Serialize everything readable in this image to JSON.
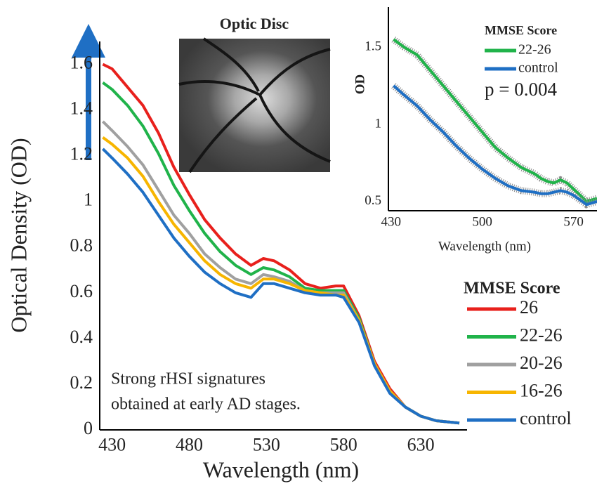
{
  "image": {
    "title": "Optic Disc"
  },
  "chart_data": [
    {
      "type": "line",
      "x": [
        424,
        430,
        440,
        450,
        460,
        470,
        480,
        490,
        500,
        510,
        520,
        528,
        535,
        545,
        555,
        565,
        575,
        580,
        590,
        600,
        610,
        620,
        630,
        640,
        655
      ],
      "series": [
        {
          "name": "26",
          "color": "#e8201c",
          "values": [
            1.6,
            1.58,
            1.5,
            1.42,
            1.3,
            1.15,
            1.03,
            0.92,
            0.84,
            0.77,
            0.72,
            0.75,
            0.74,
            0.7,
            0.64,
            0.62,
            0.63,
            0.63,
            0.5,
            0.3,
            0.18,
            0.1,
            0.06,
            0.04,
            0.03
          ]
        },
        {
          "name": "22-26",
          "color": "#20b34a",
          "values": [
            1.52,
            1.49,
            1.42,
            1.33,
            1.21,
            1.07,
            0.96,
            0.86,
            0.78,
            0.72,
            0.68,
            0.71,
            0.7,
            0.67,
            0.62,
            0.61,
            0.61,
            0.61,
            0.49,
            0.29,
            0.17,
            0.1,
            0.06,
            0.04,
            0.03
          ]
        },
        {
          "name": "20-26",
          "color": "#a0a0a0",
          "values": [
            1.35,
            1.31,
            1.24,
            1.16,
            1.05,
            0.94,
            0.86,
            0.77,
            0.71,
            0.66,
            0.64,
            0.68,
            0.67,
            0.65,
            0.61,
            0.6,
            0.6,
            0.6,
            0.48,
            0.29,
            0.17,
            0.1,
            0.06,
            0.04,
            0.03
          ]
        },
        {
          "name": "16-26",
          "color": "#f7b500",
          "values": [
            1.28,
            1.25,
            1.19,
            1.11,
            1.0,
            0.9,
            0.82,
            0.74,
            0.68,
            0.64,
            0.62,
            0.66,
            0.66,
            0.64,
            0.61,
            0.6,
            0.59,
            0.59,
            0.48,
            0.29,
            0.17,
            0.1,
            0.06,
            0.04,
            0.03
          ]
        },
        {
          "name": "control",
          "color": "#1f6fc4",
          "values": [
            1.23,
            1.19,
            1.12,
            1.04,
            0.94,
            0.84,
            0.76,
            0.69,
            0.64,
            0.6,
            0.58,
            0.64,
            0.64,
            0.62,
            0.6,
            0.59,
            0.59,
            0.58,
            0.47,
            0.28,
            0.16,
            0.1,
            0.06,
            0.04,
            0.03
          ]
        }
      ],
      "xlim": [
        422,
        660
      ],
      "ylim": [
        0,
        1.7
      ],
      "xticks": [
        430,
        480,
        530,
        580,
        630
      ],
      "yticks": [
        0,
        0.2,
        0.4,
        0.6,
        0.8,
        1,
        1.2,
        1.4,
        1.6
      ],
      "xlabel": "Wavelength (nm)",
      "ylabel": "Optical Density (OD)",
      "legend_title": "MMSE Score",
      "annotation": [
        "Strong rHSI signatures",
        "obtained at early AD stages."
      ]
    },
    {
      "type": "line",
      "x": [
        432,
        440,
        450,
        460,
        470,
        480,
        490,
        500,
        510,
        520,
        530,
        540,
        545,
        550,
        555,
        560,
        565,
        570,
        575,
        580,
        588
      ],
      "series": [
        {
          "name": "22-26",
          "color": "#20b34a",
          "values": [
            1.55,
            1.5,
            1.45,
            1.35,
            1.25,
            1.15,
            1.05,
            0.95,
            0.85,
            0.78,
            0.72,
            0.68,
            0.65,
            0.63,
            0.62,
            0.64,
            0.62,
            0.58,
            0.54,
            0.5,
            0.52
          ]
        },
        {
          "name": "control",
          "color": "#1f6fc4",
          "values": [
            1.25,
            1.19,
            1.12,
            1.03,
            0.95,
            0.86,
            0.78,
            0.71,
            0.65,
            0.6,
            0.57,
            0.56,
            0.55,
            0.55,
            0.56,
            0.57,
            0.56,
            0.54,
            0.51,
            0.48,
            0.5
          ]
        }
      ],
      "xlim": [
        428,
        588
      ],
      "ylim": [
        0.44,
        1.76
      ],
      "xticks": [
        430,
        500,
        570
      ],
      "yticks": [
        0.5,
        1,
        1.5
      ],
      "xlabel": "Wavelength (nm)",
      "ylabel": "OD",
      "legend_title": "MMSE Score",
      "annotation": [
        "p = 0.004"
      ]
    }
  ]
}
